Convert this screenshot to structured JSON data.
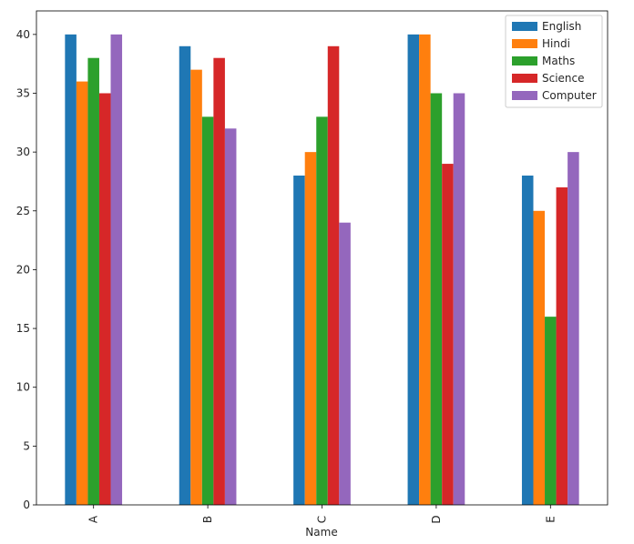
{
  "chart_data": {
    "type": "bar",
    "xlabel": "Name",
    "ylabel": "",
    "categories": [
      "A",
      "B",
      "C",
      "D",
      "E"
    ],
    "series": [
      {
        "name": "English",
        "color": "#1f77b4",
        "values": [
          40,
          39,
          28,
          40,
          28
        ]
      },
      {
        "name": "Hindi",
        "color": "#ff7f0e",
        "values": [
          36,
          37,
          30,
          40,
          25
        ]
      },
      {
        "name": "Maths",
        "color": "#2ca02c",
        "values": [
          38,
          33,
          33,
          35,
          16
        ]
      },
      {
        "name": "Science",
        "color": "#d62728",
        "values": [
          35,
          38,
          39,
          29,
          27
        ]
      },
      {
        "name": "Computer",
        "color": "#9467bd",
        "values": [
          40,
          32,
          24,
          35,
          30
        ]
      }
    ],
    "ylim": [
      0,
      42
    ],
    "yticks": [
      0,
      5,
      10,
      15,
      20,
      25,
      30,
      35,
      40
    ],
    "ytick_labels": [
      "0",
      "5",
      "10",
      "15",
      "20",
      "25",
      "30",
      "35",
      "40"
    ],
    "grid": false,
    "legend_position": "top-right",
    "xtick_rotation": "vertical"
  }
}
